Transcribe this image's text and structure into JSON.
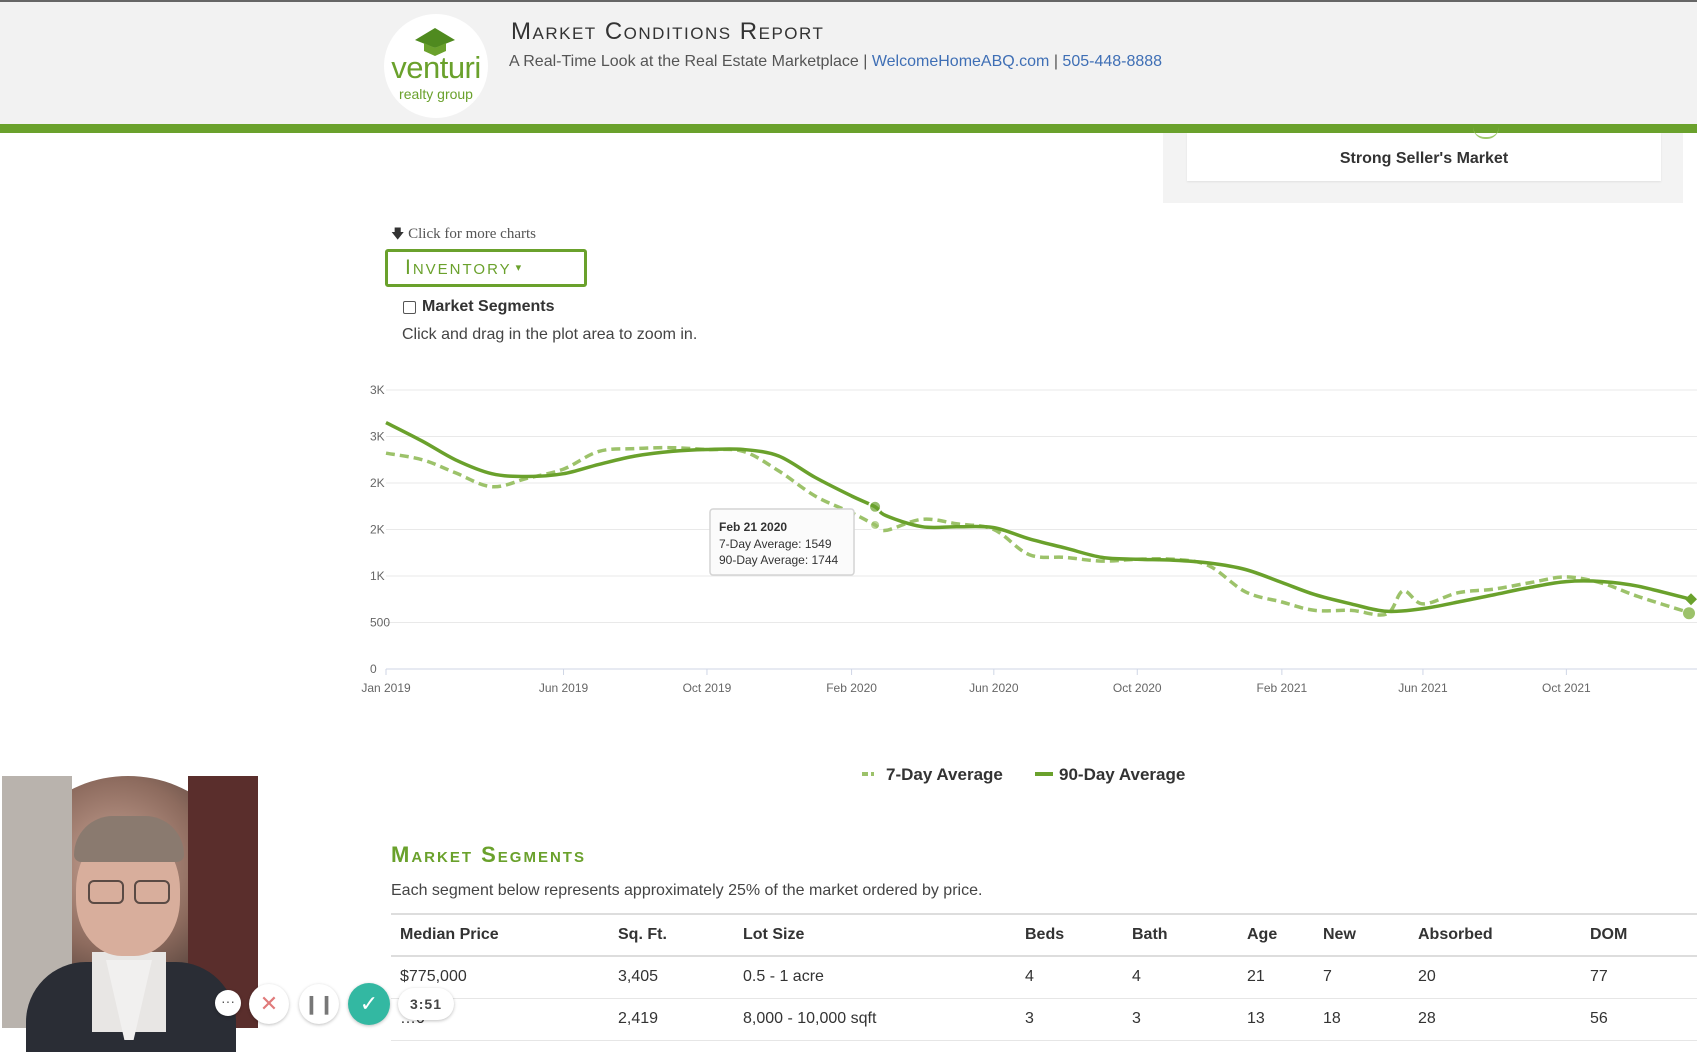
{
  "header": {
    "logo_word": "venturi",
    "logo_sub": "realty group",
    "title": "Market Conditions Report",
    "subtitle_text": "A Real-Time Look at the Real Estate Marketplace | ",
    "website": "WelcomeHomeABQ.com",
    "separator": " | ",
    "phone": "505-448-8888",
    "accent_color": "#6aa12c"
  },
  "seller_box": {
    "label": "Strong Seller's Market"
  },
  "controls": {
    "more_charts_icon": "arrow-down-icon",
    "more_charts_label": "Click for more charts",
    "chart_select_label": "Inventory",
    "chart_select_caret": "▾",
    "segments_checkbox_label": "Market Segments",
    "segments_checked": false,
    "zoom_hint": "Click and drag in the plot area to zoom in."
  },
  "chart_data": {
    "type": "line",
    "title": "",
    "xlabel": "",
    "ylabel": "",
    "y_tick_labels": [
      "0",
      "500",
      "1K",
      "2K",
      "2K",
      "3K",
      "3K"
    ],
    "y_tick_values": [
      0,
      500,
      1000,
      1500,
      2000,
      2500,
      3000
    ],
    "ylim": [
      0,
      3000
    ],
    "x_tick_labels": [
      "Jan 2019",
      "Jun 2019",
      "Oct 2019",
      "Feb 2020",
      "Jun 2020",
      "Oct 2020",
      "Feb 2021",
      "Jun 2021",
      "Oct 2021"
    ],
    "x_tick_dates": [
      "2019-01-01",
      "2019-06-01",
      "2019-10-01",
      "2020-02-01",
      "2020-06-01",
      "2020-10-01",
      "2021-02-01",
      "2021-06-01",
      "2021-10-01"
    ],
    "xlim": [
      "2019-01-01",
      "2022-01-15"
    ],
    "grid": true,
    "legend_position": "bottom-center",
    "series": [
      {
        "name": "7-Day Average",
        "style": "dashed",
        "color": "#9cc26a",
        "points": [
          [
            "2019-01-01",
            2320
          ],
          [
            "2019-02-01",
            2250
          ],
          [
            "2019-03-01",
            2110
          ],
          [
            "2019-04-01",
            1960
          ],
          [
            "2019-05-01",
            2050
          ],
          [
            "2019-06-01",
            2150
          ],
          [
            "2019-07-01",
            2340
          ],
          [
            "2019-08-01",
            2370
          ],
          [
            "2019-09-01",
            2380
          ],
          [
            "2019-10-01",
            2360
          ],
          [
            "2019-11-01",
            2340
          ],
          [
            "2019-12-01",
            2130
          ],
          [
            "2020-01-01",
            1860
          ],
          [
            "2020-02-01",
            1680
          ],
          [
            "2020-02-21",
            1549
          ],
          [
            "2020-03-01",
            1490
          ],
          [
            "2020-04-01",
            1610
          ],
          [
            "2020-05-01",
            1560
          ],
          [
            "2020-06-01",
            1500
          ],
          [
            "2020-07-01",
            1230
          ],
          [
            "2020-08-01",
            1200
          ],
          [
            "2020-09-01",
            1160
          ],
          [
            "2020-10-01",
            1180
          ],
          [
            "2020-11-01",
            1180
          ],
          [
            "2020-12-01",
            1110
          ],
          [
            "2021-01-01",
            830
          ],
          [
            "2021-02-01",
            720
          ],
          [
            "2021-03-01",
            630
          ],
          [
            "2021-04-01",
            630
          ],
          [
            "2021-05-01",
            590
          ],
          [
            "2021-05-15",
            840
          ],
          [
            "2021-06-01",
            700
          ],
          [
            "2021-07-01",
            820
          ],
          [
            "2021-08-01",
            860
          ],
          [
            "2021-09-01",
            930
          ],
          [
            "2021-10-01",
            990
          ],
          [
            "2021-11-01",
            920
          ],
          [
            "2021-12-01",
            780
          ],
          [
            "2022-01-15",
            600
          ]
        ]
      },
      {
        "name": "90-Day Average",
        "style": "solid",
        "color": "#6aa12c",
        "points": [
          [
            "2019-01-01",
            2650
          ],
          [
            "2019-02-01",
            2450
          ],
          [
            "2019-03-01",
            2250
          ],
          [
            "2019-04-01",
            2100
          ],
          [
            "2019-05-01",
            2070
          ],
          [
            "2019-06-01",
            2100
          ],
          [
            "2019-07-01",
            2200
          ],
          [
            "2019-08-01",
            2290
          ],
          [
            "2019-09-01",
            2340
          ],
          [
            "2019-10-01",
            2360
          ],
          [
            "2019-11-01",
            2360
          ],
          [
            "2019-12-01",
            2290
          ],
          [
            "2020-01-01",
            2060
          ],
          [
            "2020-02-01",
            1860
          ],
          [
            "2020-02-21",
            1744
          ],
          [
            "2020-03-01",
            1650
          ],
          [
            "2020-04-01",
            1530
          ],
          [
            "2020-05-01",
            1530
          ],
          [
            "2020-06-01",
            1520
          ],
          [
            "2020-07-01",
            1400
          ],
          [
            "2020-08-01",
            1300
          ],
          [
            "2020-09-01",
            1200
          ],
          [
            "2020-10-01",
            1180
          ],
          [
            "2020-11-01",
            1170
          ],
          [
            "2020-12-01",
            1140
          ],
          [
            "2021-01-01",
            1070
          ],
          [
            "2021-02-01",
            930
          ],
          [
            "2021-03-01",
            800
          ],
          [
            "2021-04-01",
            700
          ],
          [
            "2021-05-01",
            620
          ],
          [
            "2021-06-01",
            650
          ],
          [
            "2021-07-01",
            720
          ],
          [
            "2021-08-01",
            800
          ],
          [
            "2021-09-01",
            880
          ],
          [
            "2021-10-01",
            940
          ],
          [
            "2021-11-01",
            940
          ],
          [
            "2021-12-01",
            890
          ],
          [
            "2022-01-15",
            750
          ]
        ]
      }
    ],
    "tooltip": {
      "date_label": "Feb 21 2020",
      "lines": [
        "7-Day Average: 1549",
        "90-Day Average: 1744"
      ],
      "x": "2020-02-21"
    }
  },
  "segments": {
    "title": "Market Segments",
    "description": "Each segment below represents approximately 25% of the market ordered by price.",
    "columns": [
      "Median Price",
      "Sq. Ft.",
      "Lot Size",
      "Beds",
      "Bath",
      "Age",
      "New",
      "Absorbed",
      "DOM"
    ],
    "rows": [
      [
        "$775,000",
        "3,405",
        "0.5 - 1 acre",
        "4",
        "4",
        "21",
        "7",
        "20",
        "77"
      ],
      [
        "…0",
        "2,419",
        "8,000 - 10,000 sqft",
        "3",
        "3",
        "13",
        "18",
        "28",
        "56"
      ]
    ]
  },
  "recorder": {
    "more_icon": "ellipsis-icon",
    "more_label": "···",
    "cancel_icon": "close-icon",
    "cancel_glyph": "✕",
    "pause_icon": "pause-icon",
    "pause_glyph": "❙❙",
    "done_icon": "check-icon",
    "done_glyph": "✓",
    "timer": "3:51"
  }
}
